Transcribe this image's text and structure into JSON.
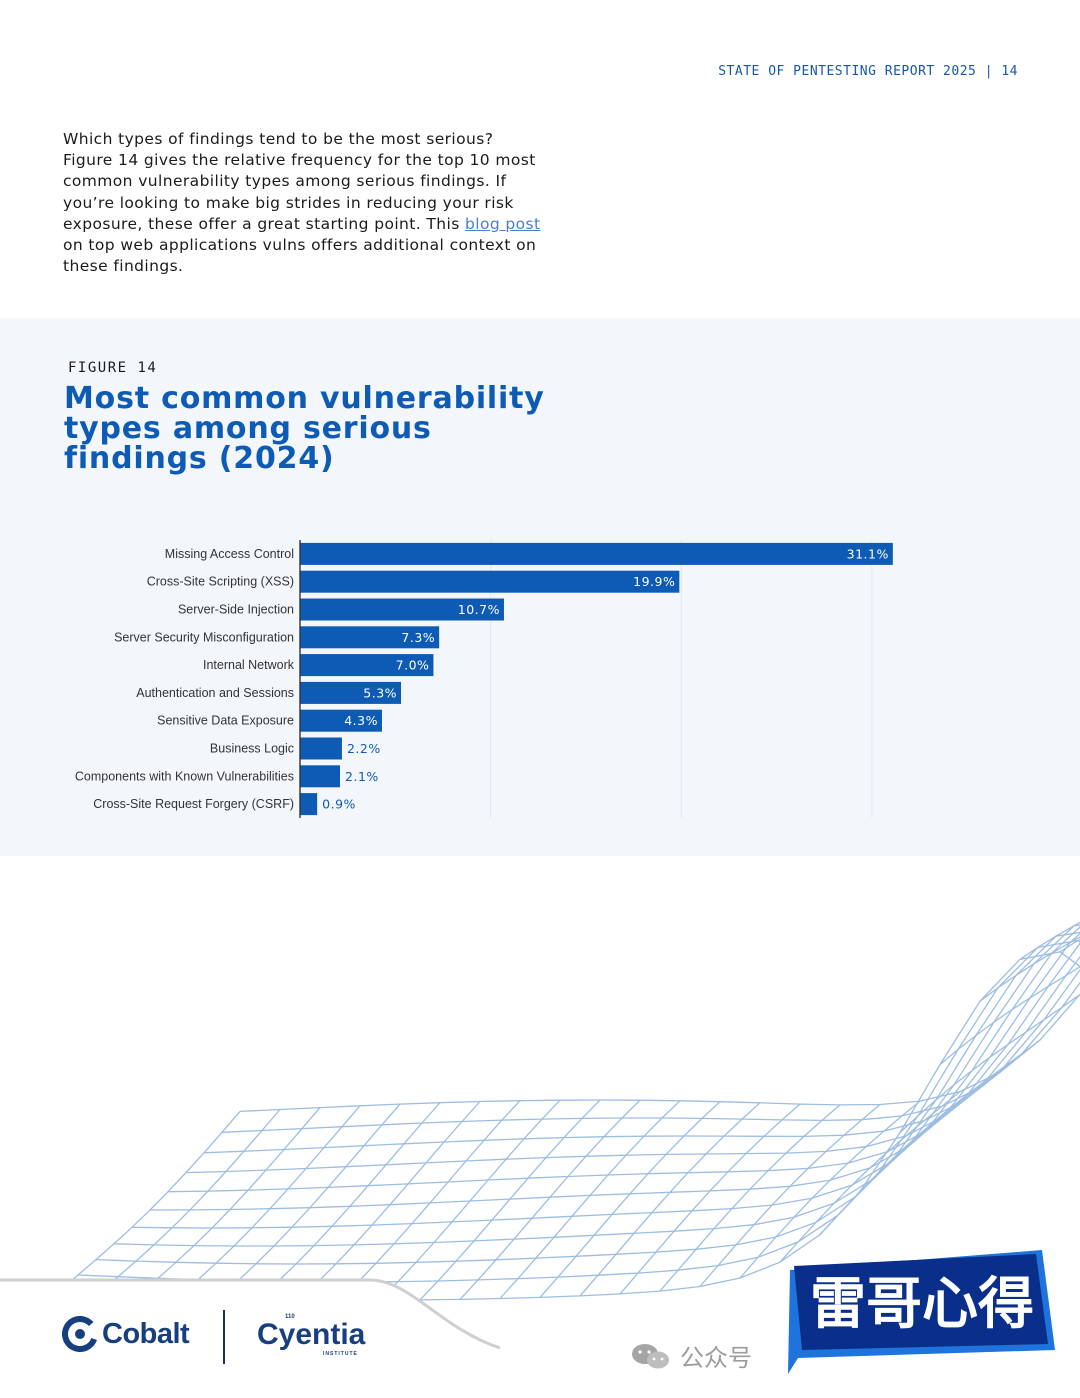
{
  "header": {
    "text": "STATE OF PENTESTING REPORT 2025  |  14"
  },
  "intro": {
    "before_link": "Which types of findings tend to be the most serious? Figure 14 gives the relative frequency for the top 10 most common vulnerability types among serious findings. If you’re looking to make big strides in reducing your risk exposure, these offer a great starting point. This ",
    "link_text": "blog post",
    "after_link": " on top web applications vulns offers additional context on these findings."
  },
  "figure": {
    "label": "FIGURE 14",
    "title": "Most common vulnerability types among serious findings (2024)"
  },
  "chart_data": {
    "type": "bar",
    "orientation": "horizontal",
    "title": "Most common vulnerability types among serious findings (2024)",
    "categories": [
      "Missing Access Control",
      "Cross-Site Scripting (XSS)",
      "Server-Side Injection",
      "Server Security Misconfiguration",
      "Internal Network",
      "Authentication and Sessions",
      "Sensitive Data Exposure",
      "Business Logic",
      "Components with Known Vulnerabilities",
      "Cross-Site Request Forgery (CSRF)"
    ],
    "values": [
      31.1,
      19.9,
      10.7,
      7.3,
      7.0,
      5.3,
      4.3,
      2.2,
      2.1,
      0.9
    ],
    "value_labels": [
      "31.1%",
      "19.9%",
      "10.7%",
      "7.3%",
      "7.0%",
      "5.3%",
      "4.3%",
      "2.2%",
      "2.1%",
      "0.9%"
    ],
    "unit": "%",
    "xlim": [
      0,
      32
    ],
    "gridlines": [
      10,
      20,
      30
    ],
    "bar_color": "#0d5bb5",
    "label_color_inside": "#ffffff",
    "label_color_outside": "#0d5bb5"
  },
  "footer": {
    "cobalt_name": "Cobalt",
    "cyentia_name": "Cyentia",
    "cyentia_sub": "INSTITUTE",
    "cyentia_tag": "110"
  },
  "watermark": {
    "wechat_text": "公众号",
    "badge_text": "雷哥心得"
  },
  "colors": {
    "accent": "#0d5bb5",
    "panel_bg": "#f3f7fc",
    "header": "#1a56a8",
    "link": "#4a7fd0"
  }
}
